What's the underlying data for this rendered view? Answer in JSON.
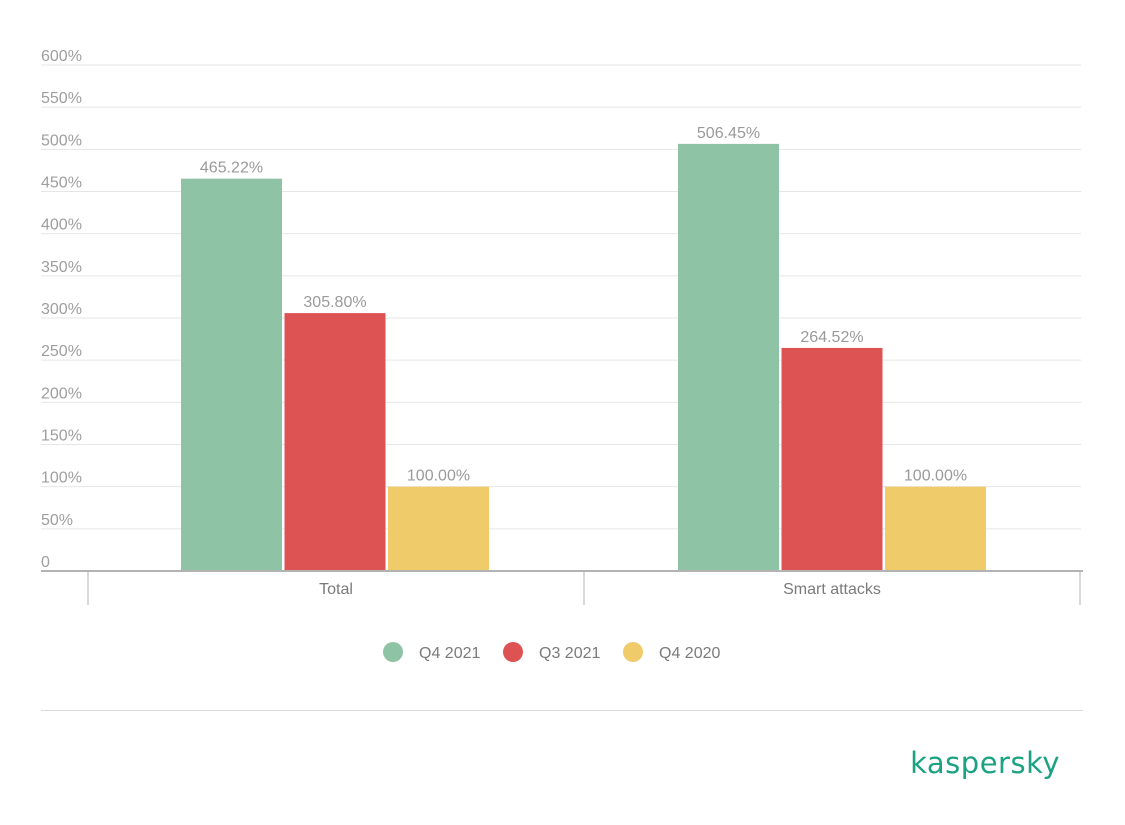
{
  "chart_data": {
    "type": "bar",
    "categories": [
      "Total",
      "Smart attacks"
    ],
    "series": [
      {
        "name": "Q4 2021",
        "values": [
          465.22,
          506.45
        ],
        "labels": [
          "465.22%",
          "506.45%"
        ],
        "color": "#8fc3a6"
      },
      {
        "name": "Q3 2021",
        "values": [
          305.8,
          264.52
        ],
        "labels": [
          "305.80%",
          "264.52%"
        ],
        "color": "#dd5253"
      },
      {
        "name": "Q4 2020",
        "values": [
          100.0,
          100.0
        ],
        "labels": [
          "100.00%",
          "100.00%"
        ],
        "color": "#efcb6a"
      }
    ],
    "ylim": [
      0,
      600
    ],
    "yticks": [
      0,
      50,
      100,
      150,
      200,
      250,
      300,
      350,
      400,
      450,
      500,
      550,
      600
    ],
    "ytick_labels": [
      "0",
      "50%",
      "100%",
      "150%",
      "200%",
      "250%",
      "300%",
      "350%",
      "400%",
      "450%",
      "500%",
      "550%",
      "600%"
    ],
    "grid": true,
    "legend": "bottom-center",
    "xlabel": "",
    "ylabel": ""
  },
  "branding": {
    "logo_text": "kaspersky",
    "color": "#1aa283"
  }
}
